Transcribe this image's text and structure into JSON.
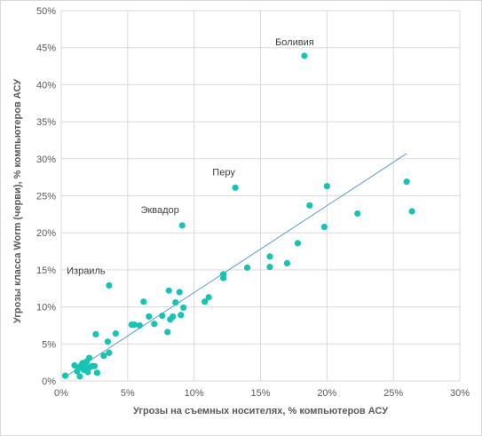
{
  "chart_data": {
    "type": "scatter",
    "title": "",
    "xlabel": "Угрозы на съемных носителях, % компьютеров АСУ",
    "ylabel": "Угрозы класса Worm (черви), % компьютеров АСУ",
    "xlim": [
      0,
      30
    ],
    "ylim": [
      0,
      50
    ],
    "x_ticks": [
      "0%",
      "5%",
      "10%",
      "15%",
      "20%",
      "25%",
      "30%"
    ],
    "y_ticks": [
      "0%",
      "5%",
      "10%",
      "15%",
      "20%",
      "25%",
      "30%",
      "35%",
      "40%",
      "45%",
      "50%"
    ],
    "grid": "vertical and horizontal",
    "point_color": "#17c3b2",
    "trendline_color": "#5b9bd5",
    "trendline": {
      "x": [
        0.5,
        26
      ],
      "y": [
        0.8,
        30.7
      ]
    },
    "points": [
      [
        0.3,
        0.7
      ],
      [
        1.0,
        2.1
      ],
      [
        1.2,
        1.3
      ],
      [
        1.3,
        1.8
      ],
      [
        1.4,
        0.6
      ],
      [
        1.5,
        2.1
      ],
      [
        1.6,
        2.4
      ],
      [
        1.7,
        1.5
      ],
      [
        1.8,
        1.9
      ],
      [
        1.9,
        2.6
      ],
      [
        2.0,
        1.2
      ],
      [
        2.1,
        3.1
      ],
      [
        2.2,
        1.9
      ],
      [
        2.3,
        2.0
      ],
      [
        2.5,
        2.0
      ],
      [
        2.6,
        6.3
      ],
      [
        2.7,
        1.1
      ],
      [
        3.2,
        3.4
      ],
      [
        3.5,
        5.3
      ],
      [
        3.6,
        12.9
      ],
      [
        3.6,
        3.8
      ],
      [
        4.1,
        6.4
      ],
      [
        5.3,
        7.6
      ],
      [
        5.5,
        7.6
      ],
      [
        5.9,
        7.5
      ],
      [
        6.2,
        10.7
      ],
      [
        6.6,
        8.7
      ],
      [
        7.0,
        7.7
      ],
      [
        7.6,
        8.8
      ],
      [
        8.0,
        6.6
      ],
      [
        8.1,
        12.2
      ],
      [
        8.2,
        8.3
      ],
      [
        8.4,
        8.7
      ],
      [
        8.6,
        10.6
      ],
      [
        8.9,
        12.0
      ],
      [
        9.0,
        8.9
      ],
      [
        9.1,
        21.0
      ],
      [
        9.2,
        9.9
      ],
      [
        10.8,
        10.7
      ],
      [
        11.1,
        11.3
      ],
      [
        12.2,
        14.4
      ],
      [
        12.2,
        13.9
      ],
      [
        13.1,
        26.1
      ],
      [
        14.0,
        15.3
      ],
      [
        15.7,
        16.8
      ],
      [
        15.7,
        15.4
      ],
      [
        17.0,
        15.9
      ],
      [
        17.8,
        18.6
      ],
      [
        18.3,
        43.9
      ],
      [
        18.7,
        23.7
      ],
      [
        19.8,
        20.8
      ],
      [
        20.0,
        26.3
      ],
      [
        22.3,
        22.6
      ],
      [
        26.0,
        26.9
      ],
      [
        26.4,
        22.9
      ]
    ],
    "annotations": [
      {
        "label": "Боливия",
        "x": 18.3,
        "y": 43.9
      },
      {
        "label": "Перу",
        "x": 13.1,
        "y": 26.1
      },
      {
        "label": "Эквадор",
        "x": 9.1,
        "y": 21.0
      },
      {
        "label": "Израиль",
        "x": 3.6,
        "y": 12.9
      }
    ]
  }
}
